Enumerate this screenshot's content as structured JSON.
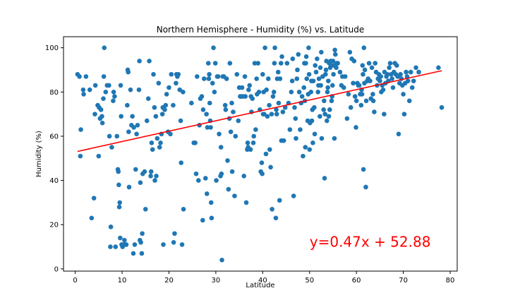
{
  "chart_data": {
    "type": "scatter",
    "title": "Northern Hemisphere - Humidity (%) vs. Latitude",
    "xlabel": "Latitude",
    "ylabel": "Humidity (%)",
    "xlim": [
      -2.5,
      81.5
    ],
    "ylim": [
      -1,
      105
    ],
    "xticks": [
      0,
      10,
      20,
      30,
      40,
      50,
      60,
      70,
      80
    ],
    "yticks": [
      0,
      20,
      40,
      60,
      80,
      100
    ],
    "grid": false,
    "colors": {
      "points": "#1f77b4",
      "regression": "#ff0000",
      "annotation": "#ff0000"
    },
    "regression": {
      "slope": 0.47,
      "intercept": 52.88,
      "x_start": 0.5,
      "x_end": 78.2
    },
    "annotation": {
      "text": "y=0.47x + 52.88",
      "x": 50,
      "y": 10
    },
    "points": [
      [
        0.5,
        88
      ],
      [
        0.9,
        87
      ],
      [
        1.1,
        51
      ],
      [
        1.2,
        63
      ],
      [
        1.7,
        81
      ],
      [
        1.8,
        79
      ],
      [
        2.3,
        87
      ],
      [
        3.1,
        81
      ],
      [
        3.5,
        23
      ],
      [
        4.0,
        32
      ],
      [
        4.2,
        70
      ],
      [
        4.3,
        83
      ],
      [
        4.8,
        74
      ],
      [
        5.0,
        51
      ],
      [
        5.1,
        73
      ],
      [
        5.3,
        68
      ],
      [
        5.5,
        72
      ],
      [
        5.7,
        69
      ],
      [
        5.8,
        66
      ],
      [
        6.0,
        77
      ],
      [
        6.1,
        87
      ],
      [
        6.2,
        100
      ],
      [
        6.5,
        80
      ],
      [
        6.8,
        83
      ],
      [
        7.2,
        83
      ],
      [
        7.3,
        60
      ],
      [
        7.5,
        10
      ],
      [
        7.6,
        19
      ],
      [
        7.8,
        55
      ],
      [
        8.1,
        76
      ],
      [
        8.2,
        80
      ],
      [
        8.4,
        78
      ],
      [
        8.6,
        10
      ],
      [
        8.9,
        60
      ],
      [
        9.1,
        45
      ],
      [
        9.2,
        44
      ],
      [
        9.3,
        38
      ],
      [
        9.4,
        28
      ],
      [
        9.5,
        30
      ],
      [
        9.6,
        14
      ],
      [
        9.7,
        83
      ],
      [
        9.8,
        69
      ],
      [
        9.9,
        11
      ],
      [
        10.1,
        10
      ],
      [
        10.3,
        11
      ],
      [
        10.5,
        13
      ],
      [
        10.7,
        11
      ],
      [
        10.9,
        11
      ],
      [
        11.1,
        74
      ],
      [
        11.2,
        90
      ],
      [
        11.3,
        89
      ],
      [
        11.4,
        62
      ],
      [
        11.5,
        37
      ],
      [
        11.8,
        81
      ],
      [
        12.0,
        65
      ],
      [
        12.2,
        69
      ],
      [
        12.4,
        7
      ],
      [
        12.5,
        64
      ],
      [
        12.7,
        11
      ],
      [
        12.9,
        45
      ],
      [
        13.1,
        61
      ],
      [
        13.3,
        65
      ],
      [
        13.6,
        81
      ],
      [
        13.7,
        94
      ],
      [
        13.8,
        13
      ],
      [
        13.9,
        39
      ],
      [
        14.0,
        12
      ],
      [
        14.2,
        7
      ],
      [
        14.3,
        16
      ],
      [
        14.4,
        43
      ],
      [
        14.8,
        44
      ],
      [
        15.0,
        27
      ],
      [
        15.3,
        67
      ],
      [
        15.6,
        77
      ],
      [
        15.8,
        94
      ],
      [
        16.1,
        42
      ],
      [
        16.2,
        44
      ],
      [
        16.3,
        57
      ],
      [
        16.5,
        54
      ],
      [
        16.7,
        88
      ],
      [
        16.9,
        73
      ],
      [
        17.0,
        40
      ],
      [
        17.2,
        69
      ],
      [
        17.3,
        42
      ],
      [
        17.5,
        59
      ],
      [
        17.8,
        84
      ],
      [
        18.0,
        55
      ],
      [
        18.2,
        57
      ],
      [
        18.4,
        61
      ],
      [
        18.6,
        70
      ],
      [
        18.7,
        73
      ],
      [
        18.8,
        11
      ],
      [
        19.1,
        72
      ],
      [
        19.3,
        74
      ],
      [
        19.5,
        79
      ],
      [
        19.8,
        62
      ],
      [
        20.0,
        82
      ],
      [
        20.3,
        61
      ],
      [
        20.5,
        88
      ],
      [
        20.9,
        74
      ],
      [
        21.0,
        12
      ],
      [
        21.2,
        16
      ],
      [
        21.5,
        84
      ],
      [
        21.6,
        88
      ],
      [
        21.8,
        87
      ],
      [
        22.0,
        88
      ],
      [
        22.3,
        81
      ],
      [
        22.5,
        67
      ],
      [
        22.6,
        48
      ],
      [
        22.8,
        11
      ],
      [
        23.0,
        80
      ],
      [
        23.1,
        27
      ],
      [
        24.8,
        75
      ],
      [
        25.3,
        57
      ],
      [
        25.6,
        57
      ],
      [
        25.8,
        43
      ],
      [
        26.0,
        87
      ],
      [
        26.3,
        40
      ],
      [
        26.5,
        65
      ],
      [
        26.7,
        77
      ],
      [
        27.0,
        78
      ],
      [
        27.2,
        22
      ],
      [
        27.3,
        72
      ],
      [
        27.5,
        86
      ],
      [
        27.8,
        41
      ],
      [
        28.0,
        70
      ],
      [
        28.1,
        34
      ],
      [
        28.2,
        64
      ],
      [
        28.4,
        93
      ],
      [
        28.5,
        86
      ],
      [
        28.6,
        88
      ],
      [
        28.7,
        75
      ],
      [
        28.8,
        67
      ],
      [
        28.9,
        64
      ],
      [
        29.0,
        30
      ],
      [
        29.1,
        23
      ],
      [
        29.3,
        84
      ],
      [
        29.5,
        100
      ],
      [
        29.7,
        80
      ],
      [
        29.9,
        93
      ],
      [
        30.1,
        40
      ],
      [
        30.3,
        87
      ],
      [
        30.5,
        87
      ],
      [
        30.7,
        61
      ],
      [
        31.0,
        42
      ],
      [
        31.1,
        55
      ],
      [
        31.2,
        43
      ],
      [
        31.3,
        4
      ],
      [
        31.5,
        87
      ],
      [
        31.7,
        87
      ],
      [
        32.0,
        74
      ],
      [
        32.1,
        72
      ],
      [
        32.3,
        86
      ],
      [
        32.5,
        49
      ],
      [
        32.7,
        36
      ],
      [
        32.9,
        68
      ],
      [
        33.0,
        93
      ],
      [
        33.2,
        62
      ],
      [
        33.4,
        75
      ],
      [
        33.5,
        44
      ],
      [
        33.7,
        71
      ],
      [
        34.0,
        33
      ],
      [
        34.2,
        60
      ],
      [
        34.5,
        88
      ],
      [
        34.8,
        67
      ],
      [
        35.0,
        82
      ],
      [
        35.2,
        78
      ],
      [
        35.4,
        78
      ],
      [
        35.6,
        82
      ],
      [
        35.8,
        78
      ],
      [
        36.0,
        42
      ],
      [
        36.2,
        87
      ],
      [
        36.3,
        78
      ],
      [
        36.5,
        30
      ],
      [
        36.7,
        54
      ],
      [
        36.8,
        57
      ],
      [
        36.9,
        55
      ],
      [
        37.0,
        81
      ],
      [
        37.2,
        83
      ],
      [
        37.4,
        54
      ],
      [
        37.5,
        78
      ],
      [
        37.6,
        71
      ],
      [
        37.8,
        77
      ],
      [
        38.0,
        57
      ],
      [
        38.1,
        60
      ],
      [
        38.3,
        93
      ],
      [
        38.5,
        63
      ],
      [
        38.7,
        86
      ],
      [
        38.8,
        79
      ],
      [
        39.0,
        93
      ],
      [
        39.2,
        80
      ],
      [
        39.4,
        72
      ],
      [
        39.6,
        44
      ],
      [
        39.8,
        48
      ],
      [
        39.9,
        43
      ],
      [
        40.0,
        88
      ],
      [
        40.1,
        70
      ],
      [
        40.2,
        80
      ],
      [
        40.3,
        70
      ],
      [
        40.5,
        100
      ],
      [
        40.7,
        52
      ],
      [
        40.8,
        81
      ],
      [
        41.0,
        69
      ],
      [
        41.2,
        86
      ],
      [
        41.4,
        74
      ],
      [
        41.5,
        54
      ],
      [
        41.7,
        46
      ],
      [
        41.9,
        70
      ],
      [
        42.0,
        27
      ],
      [
        42.2,
        78
      ],
      [
        42.4,
        80
      ],
      [
        42.5,
        93
      ],
      [
        42.6,
        100
      ],
      [
        42.8,
        23
      ],
      [
        42.9,
        72
      ],
      [
        43.0,
        70
      ],
      [
        43.1,
        86
      ],
      [
        43.3,
        89
      ],
      [
        43.4,
        75
      ],
      [
        43.6,
        31
      ],
      [
        43.7,
        86
      ],
      [
        43.9,
        93
      ],
      [
        44.0,
        58
      ],
      [
        44.1,
        96
      ],
      [
        44.3,
        71
      ],
      [
        44.5,
        58
      ],
      [
        44.8,
        73
      ],
      [
        45.2,
        93
      ],
      [
        45.5,
        75
      ],
      [
        45.8,
        63
      ],
      [
        46.1,
        80
      ],
      [
        46.3,
        85
      ],
      [
        46.4,
        95
      ],
      [
        46.6,
        33
      ],
      [
        46.8,
        73
      ],
      [
        47.0,
        68
      ],
      [
        47.1,
        59
      ],
      [
        47.3,
        86
      ],
      [
        47.4,
        90
      ],
      [
        47.6,
        97
      ],
      [
        47.8,
        80
      ],
      [
        48.0,
        63
      ],
      [
        48.2,
        75
      ],
      [
        48.4,
        78
      ],
      [
        48.6,
        51
      ],
      [
        48.8,
        82
      ],
      [
        48.9,
        93
      ],
      [
        49.0,
        76
      ],
      [
        49.1,
        55
      ],
      [
        49.2,
        93
      ],
      [
        49.3,
        96
      ],
      [
        49.4,
        86
      ],
      [
        49.6,
        67
      ],
      [
        49.7,
        79
      ],
      [
        49.8,
        100
      ],
      [
        49.9,
        88
      ],
      [
        50.0,
        54
      ],
      [
        50.1,
        66
      ],
      [
        50.3,
        80
      ],
      [
        50.4,
        85
      ],
      [
        50.5,
        67
      ],
      [
        50.6,
        72
      ],
      [
        50.7,
        57
      ],
      [
        50.8,
        85
      ],
      [
        51.0,
        73
      ],
      [
        51.1,
        61
      ],
      [
        51.2,
        92
      ],
      [
        51.4,
        89
      ],
      [
        51.6,
        95
      ],
      [
        51.8,
        80
      ],
      [
        51.9,
        83
      ],
      [
        52.0,
        86
      ],
      [
        52.2,
        69
      ],
      [
        52.3,
        91
      ],
      [
        52.4,
        83
      ],
      [
        52.5,
        98
      ],
      [
        52.6,
        59
      ],
      [
        52.8,
        87
      ],
      [
        53.0,
        72
      ],
      [
        53.1,
        76
      ],
      [
        53.2,
        41
      ],
      [
        53.3,
        70
      ],
      [
        53.4,
        88
      ],
      [
        53.5,
        90
      ],
      [
        53.6,
        94
      ],
      [
        53.7,
        67
      ],
      [
        53.8,
        80
      ],
      [
        53.9,
        82
      ],
      [
        54.0,
        85
      ],
      [
        54.1,
        69
      ],
      [
        54.2,
        93
      ],
      [
        54.3,
        72
      ],
      [
        54.4,
        91
      ],
      [
        54.5,
        94
      ],
      [
        54.6,
        92
      ],
      [
        54.7,
        76
      ],
      [
        54.8,
        78
      ],
      [
        54.9,
        83
      ],
      [
        55.0,
        94
      ],
      [
        55.1,
        88
      ],
      [
        55.2,
        92
      ],
      [
        55.3,
        59
      ],
      [
        55.4,
        99
      ],
      [
        55.5,
        97
      ],
      [
        55.7,
        91
      ],
      [
        55.8,
        93
      ],
      [
        56.0,
        93
      ],
      [
        56.5,
        89
      ],
      [
        56.8,
        83
      ],
      [
        57.0,
        87
      ],
      [
        57.3,
        82
      ],
      [
        57.6,
        87
      ],
      [
        58.0,
        68
      ],
      [
        58.3,
        79
      ],
      [
        58.6,
        98
      ],
      [
        58.8,
        73
      ],
      [
        59.0,
        95
      ],
      [
        59.3,
        84
      ],
      [
        59.5,
        94
      ],
      [
        59.7,
        78
      ],
      [
        59.9,
        64
      ],
      [
        60.0,
        76
      ],
      [
        60.2,
        84
      ],
      [
        60.4,
        83
      ],
      [
        60.6,
        83
      ],
      [
        60.8,
        79
      ],
      [
        61.0,
        74
      ],
      [
        61.1,
        81
      ],
      [
        61.2,
        79
      ],
      [
        61.3,
        92
      ],
      [
        61.4,
        88
      ],
      [
        61.5,
        45
      ],
      [
        61.6,
        100
      ],
      [
        61.7,
        84
      ],
      [
        61.8,
        90
      ],
      [
        62.0,
        37
      ],
      [
        62.1,
        76
      ],
      [
        62.3,
        85
      ],
      [
        62.5,
        86
      ],
      [
        62.7,
        93
      ],
      [
        62.9,
        85
      ],
      [
        63.1,
        77
      ],
      [
        63.3,
        91
      ],
      [
        63.5,
        79
      ],
      [
        63.6,
        76
      ],
      [
        63.8,
        71
      ],
      [
        64.0,
        93
      ],
      [
        64.2,
        89
      ],
      [
        64.4,
        83
      ],
      [
        64.6,
        86
      ],
      [
        64.8,
        88
      ],
      [
        65.0,
        85
      ],
      [
        65.2,
        87
      ],
      [
        65.3,
        80
      ],
      [
        65.5,
        83
      ],
      [
        65.7,
        81
      ],
      [
        65.9,
        70
      ],
      [
        66.0,
        89
      ],
      [
        66.2,
        84
      ],
      [
        66.4,
        87
      ],
      [
        66.6,
        88
      ],
      [
        66.8,
        85
      ],
      [
        67.0,
        91
      ],
      [
        67.2,
        93
      ],
      [
        67.4,
        88
      ],
      [
        67.6,
        86
      ],
      [
        67.8,
        82
      ],
      [
        68.0,
        89
      ],
      [
        68.2,
        93
      ],
      [
        68.4,
        88
      ],
      [
        68.6,
        92
      ],
      [
        68.8,
        87
      ],
      [
        69.0,
        61
      ],
      [
        69.2,
        84
      ],
      [
        69.4,
        88
      ],
      [
        69.6,
        86
      ],
      [
        69.8,
        83
      ],
      [
        70.0,
        79
      ],
      [
        70.2,
        70
      ],
      [
        70.4,
        84
      ],
      [
        70.6,
        89
      ],
      [
        70.8,
        87
      ],
      [
        71.0,
        85
      ],
      [
        71.3,
        76
      ],
      [
        71.6,
        89
      ],
      [
        71.9,
        82
      ],
      [
        72.2,
        85
      ],
      [
        72.7,
        91
      ],
      [
        73.3,
        89
      ],
      [
        77.5,
        91
      ],
      [
        78.2,
        73
      ]
    ]
  }
}
